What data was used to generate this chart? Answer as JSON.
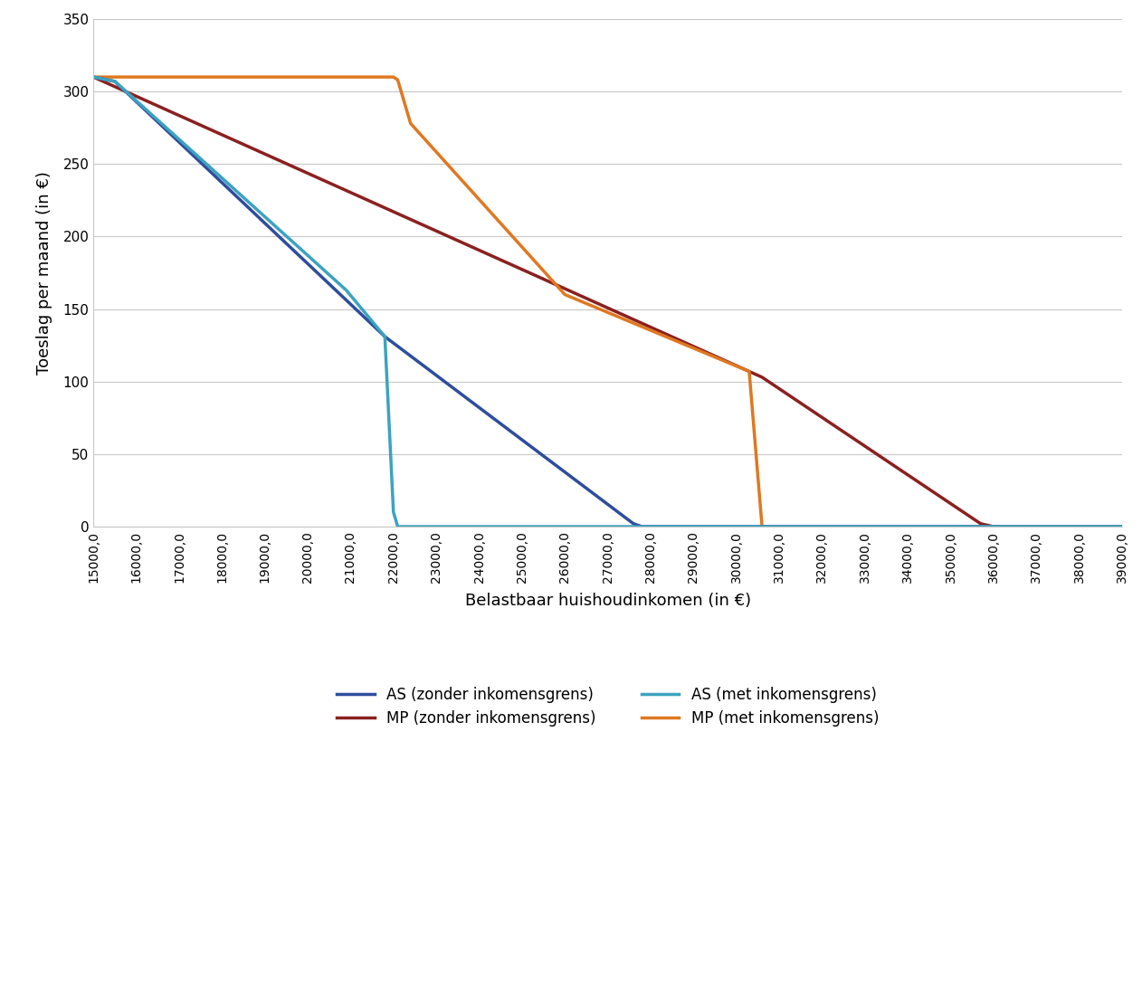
{
  "title": "",
  "xlabel": "Belastbaar huishoudinkomen (in €)",
  "ylabel": "Toeslag per maand (in €)",
  "xlim": [
    15000,
    39000
  ],
  "ylim": [
    0,
    350
  ],
  "yticks": [
    0,
    50,
    100,
    150,
    200,
    250,
    300,
    350
  ],
  "xticks": [
    15000,
    16000,
    17000,
    18000,
    19000,
    20000,
    21000,
    22000,
    23000,
    24000,
    25000,
    26000,
    27000,
    28000,
    29000,
    30000,
    31000,
    32000,
    33000,
    34000,
    35000,
    36000,
    37000,
    38000,
    39000
  ],
  "xtick_labels": [
    "15000,0",
    "16000,0",
    "17000,0",
    "18000,0",
    "19000,0",
    "20000,0",
    "21000,0",
    "22000,0",
    "23000,0",
    "24000,0",
    "25000,0",
    "26000,0",
    "27000,0",
    "28000,0",
    "29000,0",
    "30000,0",
    "31000,0",
    "32000,0",
    "33000,0",
    "34000,0",
    "35000,0",
    "36000,0",
    "37000,0",
    "38000,0",
    "39000,0"
  ],
  "series": [
    {
      "label": "AS (zonder inkomensgrens)",
      "color": "#2E4D9B",
      "x": [
        15000,
        15500,
        21800,
        27600,
        27800,
        39000
      ],
      "y": [
        310,
        307,
        131,
        2,
        0,
        0
      ]
    },
    {
      "label": "MP (zonder inkomensgrens)",
      "color": "#8B2020",
      "x": [
        15000,
        30600,
        35700,
        36000,
        39000
      ],
      "y": [
        310,
        103,
        2,
        0,
        0
      ]
    },
    {
      "label": "AS (met inkomensgrens)",
      "color": "#3BA3C0",
      "x": [
        15000,
        15500,
        20900,
        21800,
        22000,
        22100,
        39000
      ],
      "y": [
        310,
        307,
        163,
        131,
        10,
        0,
        0
      ]
    },
    {
      "label": "MP (met inkomensgrens)",
      "color": "#E07820",
      "x": [
        15000,
        22000,
        22100,
        22400,
        26000,
        30300,
        30600,
        39000
      ],
      "y": [
        310,
        310,
        308,
        278,
        160,
        107,
        0,
        0
      ]
    }
  ],
  "legend": [
    {
      "label": "AS (zonder inkomensgrens)",
      "color": "#2E4D9B"
    },
    {
      "label": "MP (zonder inkomensgrens)",
      "color": "#8B2020"
    },
    {
      "label": "AS (met inkomensgrens)",
      "color": "#3BA3C0"
    },
    {
      "label": "MP (met inkomensgrens)",
      "color": "#E07820"
    }
  ],
  "line_width": 2.5,
  "background_color": "#FFFFFF",
  "grid_color": "#C8C8C8"
}
